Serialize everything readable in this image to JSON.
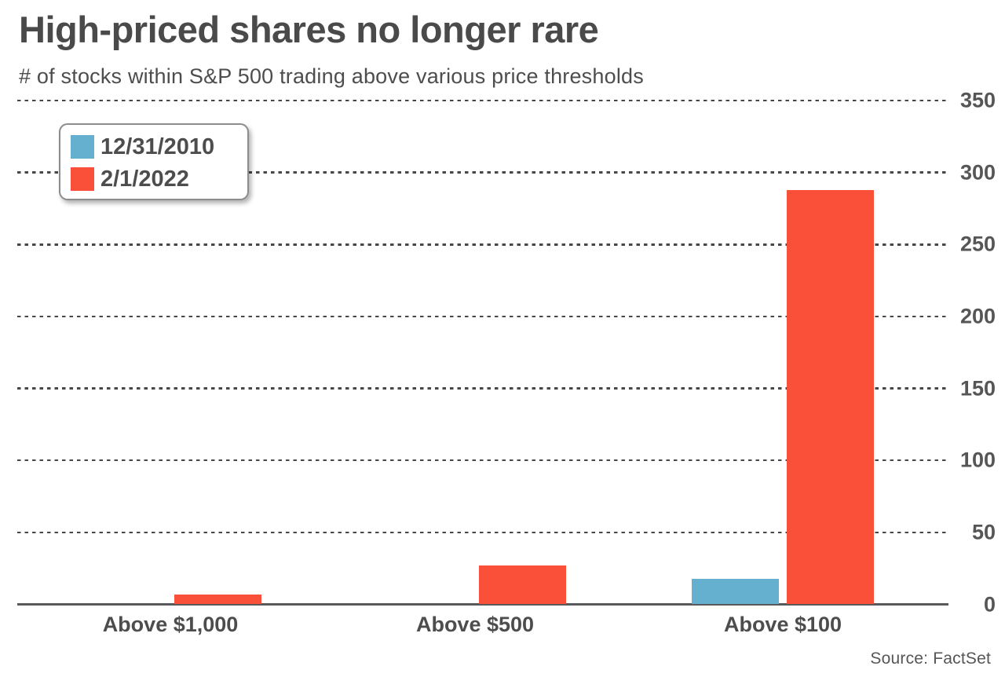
{
  "header": {
    "title": "High-priced shares no longer rare",
    "subtitle": "# of stocks within S&P 500 trading above various price thresholds"
  },
  "source_label": "Source: FactSet",
  "colors": {
    "series_2010": "#65b0cf",
    "series_2022": "#fa4f38",
    "axis_line": "#58595b",
    "grid_dash": "#474747",
    "title_text": "#4a4a4a",
    "label_text": "#4d4d4d",
    "tick_text": "#565656"
  },
  "chart_data": {
    "type": "bar",
    "title": "High-priced shares no longer rare",
    "subtitle": "# of stocks within S&P 500 trading above various price thresholds",
    "categories": [
      "Above $1,000",
      "Above $500",
      "Above $100"
    ],
    "series": [
      {
        "name": "12/31/2010",
        "color": "#65b0cf",
        "values": [
          0,
          0,
          18
        ]
      },
      {
        "name": "2/1/2022",
        "color": "#fa4f38",
        "values": [
          7,
          27,
          288
        ]
      }
    ],
    "ylabel": "",
    "xlabel": "",
    "ylim": [
      0,
      350
    ],
    "yticks": [
      0,
      50,
      100,
      150,
      200,
      250,
      300,
      350
    ],
    "grid": "horizontal dotted",
    "legend_position": "top-left",
    "source": "Source: FactSet"
  }
}
